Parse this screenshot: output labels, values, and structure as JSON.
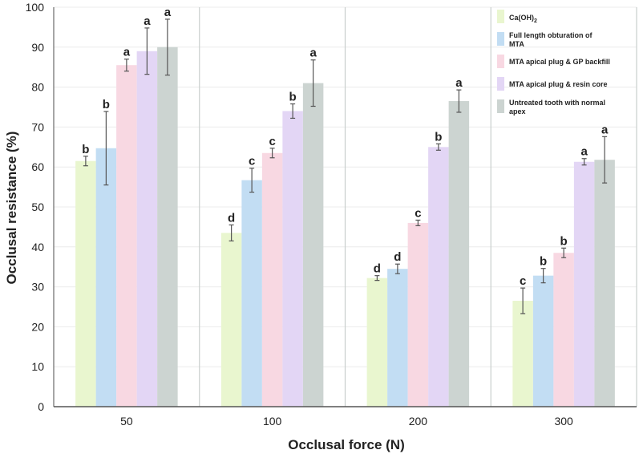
{
  "chart_data": {
    "type": "bar",
    "title": "",
    "xlabel": "Occlusal force (N)",
    "ylabel": "Occlusal resistance (%)",
    "ylim": [
      0,
      100
    ],
    "yticks": [
      "0",
      "10",
      "20",
      "30",
      "40",
      "50",
      "60",
      "70",
      "80",
      "90",
      "100"
    ],
    "categories": [
      "50",
      "100",
      "200",
      "300"
    ],
    "legend_position": "top-right",
    "series": [
      {
        "name": "Ca(OH)2",
        "label_main": "Ca(OH)",
        "label_sub": "2",
        "color": "#e9f6cf",
        "values": [
          61.5,
          43.5,
          32.2,
          26.5
        ],
        "errors": [
          1.2,
          2.0,
          0.6,
          3.2
        ],
        "significance": [
          "b",
          "d",
          "d",
          "c"
        ]
      },
      {
        "name": "Full length obturation of MTA",
        "label_lines": [
          "Full length obturation of",
          "MTA"
        ],
        "color": "#c2ddf3",
        "values": [
          64.7,
          56.7,
          34.5,
          32.8
        ],
        "errors": [
          9.2,
          3.0,
          1.2,
          1.8
        ],
        "significance": [
          "b",
          "c",
          "d",
          "b"
        ]
      },
      {
        "name": "MTA apical plug & GP backfill",
        "label_lines": [
          "MTA apical plug & GP backfill"
        ],
        "color": "#f8d8e2",
        "values": [
          85.5,
          63.5,
          46.0,
          38.5
        ],
        "errors": [
          1.5,
          1.2,
          0.7,
          1.2
        ],
        "significance": [
          "a",
          "c",
          "c",
          "b"
        ]
      },
      {
        "name": "MTA apical plug & resin core",
        "label_lines": [
          "MTA apical plug & resin core"
        ],
        "color": "#e3d6f5",
        "values": [
          89.0,
          74.0,
          65.0,
          61.3
        ],
        "errors": [
          5.8,
          1.8,
          0.8,
          0.8
        ],
        "significance": [
          "a",
          "b",
          "b",
          "a"
        ]
      },
      {
        "name": "Untreated tooth with normal apex",
        "label_lines": [
          "Untreated tooth with normal",
          "apex"
        ],
        "color": "#ccd4d1",
        "values": [
          90.0,
          81.0,
          76.5,
          61.8
        ],
        "errors": [
          7.0,
          5.8,
          2.8,
          5.8
        ],
        "significance": [
          "a",
          "a",
          "a",
          "a"
        ]
      }
    ]
  }
}
